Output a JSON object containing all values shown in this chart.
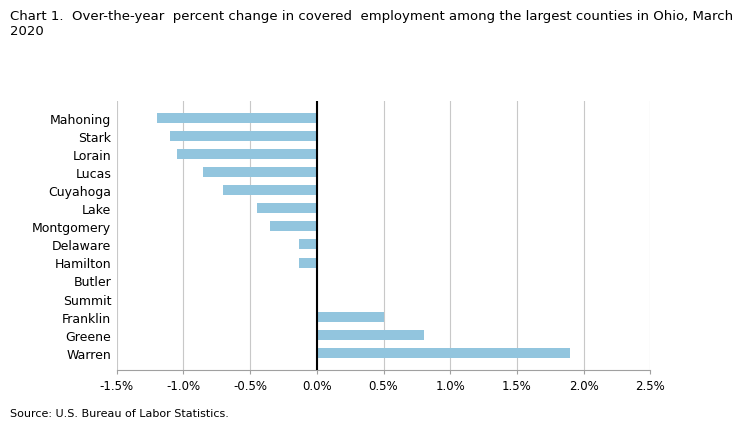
{
  "counties": [
    "Mahoning",
    "Stark",
    "Lorain",
    "Lucas",
    "Cuyahoga",
    "Lake",
    "Montgomery",
    "Delaware",
    "Hamilton",
    "Butler",
    "Summit",
    "Franklin",
    "Greene",
    "Warren"
  ],
  "values": [
    -1.2,
    -1.1,
    -1.05,
    -0.85,
    -0.7,
    -0.45,
    -0.35,
    -0.13,
    -0.13,
    0.0,
    0.0,
    0.5,
    0.8,
    1.9
  ],
  "bar_color": "#92c5de",
  "title": "Chart 1.  Over-the-year  percent change in covered  employment among the largest counties in Ohio, March\n2020",
  "source": "Source: U.S. Bureau of Labor Statistics.",
  "xlim": [
    -1.5,
    2.5
  ],
  "xticks": [
    -1.5,
    -1.0,
    -0.5,
    0.0,
    0.5,
    1.0,
    1.5,
    2.0,
    2.5
  ],
  "xtick_labels": [
    "-1.5%",
    "-1.0%",
    "-0.5%",
    "0.0%",
    "0.5%",
    "1.0%",
    "1.5%",
    "2.0%",
    "2.5%"
  ],
  "background_color": "#ffffff",
  "grid_color": "#c8c8c8",
  "title_fontsize": 9.5,
  "label_fontsize": 9,
  "tick_fontsize": 8.5,
  "source_fontsize": 8
}
